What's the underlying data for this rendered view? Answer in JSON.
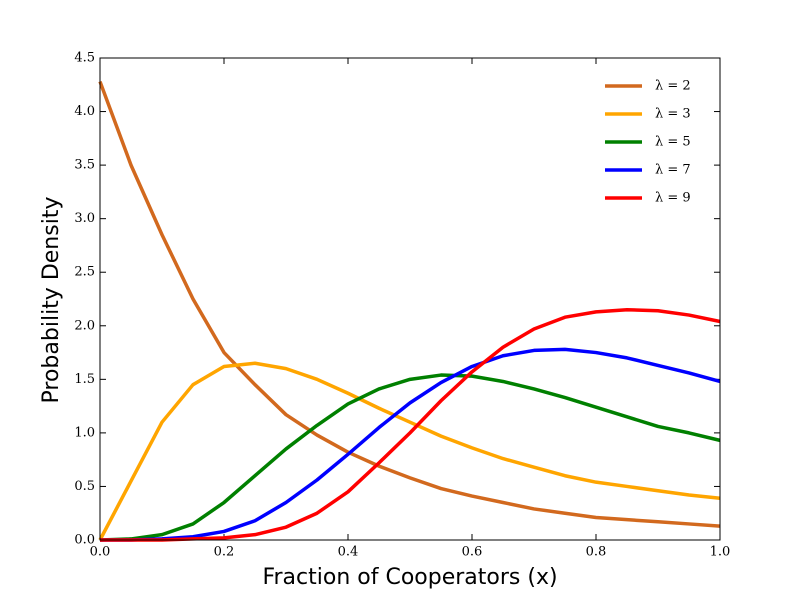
{
  "chart_data": {
    "type": "line",
    "xlabel": "Fraction of Cooperators (x)",
    "ylabel": "Probability Density",
    "x": [
      0,
      0.05,
      0.1,
      0.15,
      0.2,
      0.25,
      0.3,
      0.35,
      0.4,
      0.45,
      0.5,
      0.55,
      0.6,
      0.65,
      0.7,
      0.75,
      0.8,
      0.85,
      0.9,
      0.95,
      1.0
    ],
    "series": [
      {
        "name": "λ = 2",
        "color": "#d2691e",
        "values": [
          4.28,
          3.5,
          2.85,
          2.25,
          1.75,
          1.45,
          1.17,
          0.98,
          0.82,
          0.69,
          0.58,
          0.48,
          0.41,
          0.35,
          0.29,
          0.25,
          0.21,
          0.19,
          0.17,
          0.15,
          0.13
        ]
      },
      {
        "name": "λ = 3",
        "color": "#ffa500",
        "values": [
          0,
          0.55,
          1.1,
          1.45,
          1.62,
          1.65,
          1.6,
          1.5,
          1.37,
          1.23,
          1.1,
          0.97,
          0.86,
          0.76,
          0.68,
          0.6,
          0.54,
          0.5,
          0.46,
          0.42,
          0.39
        ]
      },
      {
        "name": "λ = 5",
        "color": "#008000",
        "values": [
          0,
          0.01,
          0.05,
          0.15,
          0.35,
          0.6,
          0.85,
          1.07,
          1.27,
          1.41,
          1.5,
          1.54,
          1.53,
          1.48,
          1.41,
          1.33,
          1.24,
          1.15,
          1.06,
          1.0,
          0.93
        ]
      },
      {
        "name": "λ = 7",
        "color": "#0000ff",
        "values": [
          0,
          0,
          0.01,
          0.03,
          0.08,
          0.18,
          0.35,
          0.56,
          0.8,
          1.05,
          1.28,
          1.47,
          1.62,
          1.72,
          1.77,
          1.78,
          1.75,
          1.7,
          1.63,
          1.56,
          1.48
        ]
      },
      {
        "name": "λ = 9",
        "color": "#ff0000",
        "values": [
          0,
          0,
          0,
          0.01,
          0.02,
          0.05,
          0.12,
          0.25,
          0.45,
          0.72,
          1.0,
          1.3,
          1.57,
          1.8,
          1.97,
          2.08,
          2.13,
          2.15,
          2.14,
          2.1,
          2.04
        ]
      }
    ],
    "xlim": [
      0,
      1
    ],
    "ylim": [
      0,
      4.5
    ],
    "xticks": [
      {
        "value": 0,
        "label": "0.0"
      },
      0.2,
      0.4,
      0.6,
      0.8,
      {
        "value": 1,
        "label": "1.0"
      }
    ],
    "yticks": [
      {
        "value": 0,
        "label": "0.0"
      },
      0.5,
      {
        "value": 1,
        "label": "1.0"
      },
      1.5,
      {
        "value": 2,
        "label": "2.0"
      },
      2.5,
      {
        "value": 3,
        "label": "3.0"
      },
      3.5,
      {
        "value": 4,
        "label": "4.0"
      },
      4.5
    ],
    "legend": "upper-right",
    "grid": false
  }
}
